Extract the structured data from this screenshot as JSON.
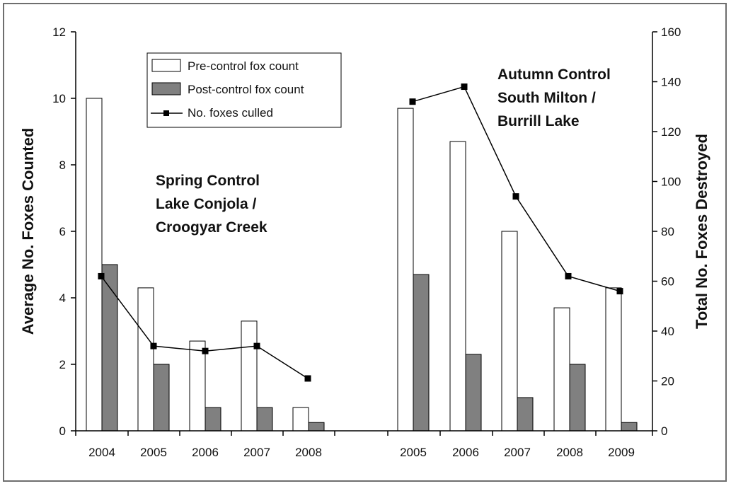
{
  "chart_data": {
    "type": "bar",
    "categories": [
      "2004",
      "2005",
      "2006",
      "2007",
      "2008",
      "2005",
      "2006",
      "2007",
      "2008",
      "2009"
    ],
    "series": [
      {
        "name": "Pre-control fox count",
        "kind": "bar",
        "axis": "left",
        "color": "#ffffff",
        "values": [
          10,
          4.3,
          2.7,
          3.3,
          0.7,
          9.7,
          8.7,
          6,
          3.7,
          4.3
        ]
      },
      {
        "name": "Post-control fox count",
        "kind": "bar",
        "axis": "left",
        "color": "#808080",
        "values": [
          5,
          2,
          0.7,
          0.7,
          0.25,
          4.7,
          2.3,
          1,
          2,
          0.25
        ]
      },
      {
        "name": "No. foxes culled",
        "kind": "line",
        "axis": "right",
        "color": "#000000",
        "groups": [
          [
            62,
            34,
            32,
            34,
            21
          ],
          [
            132,
            138,
            94,
            62,
            56
          ]
        ]
      }
    ],
    "groups": [
      {
        "name": "Spring Control",
        "sites": [
          "Lake Conjola /",
          "Croogyar Creek"
        ],
        "start": 0,
        "count": 5
      },
      {
        "name": "Autumn Control",
        "sites": [
          "South Milton /",
          "Burrill Lake"
        ],
        "start": 5,
        "count": 5
      }
    ],
    "ylabel": "Average No. Foxes Counted",
    "ylabel_right": "Total No. Foxes Destroyed",
    "ylim": [
      0,
      12
    ],
    "ylim_right": [
      0,
      160
    ],
    "yticks": [
      0,
      2,
      4,
      6,
      8,
      10,
      12
    ],
    "yticks_right": [
      0,
      20,
      40,
      60,
      80,
      100,
      120,
      140,
      160
    ],
    "legend_position": "top-left"
  }
}
